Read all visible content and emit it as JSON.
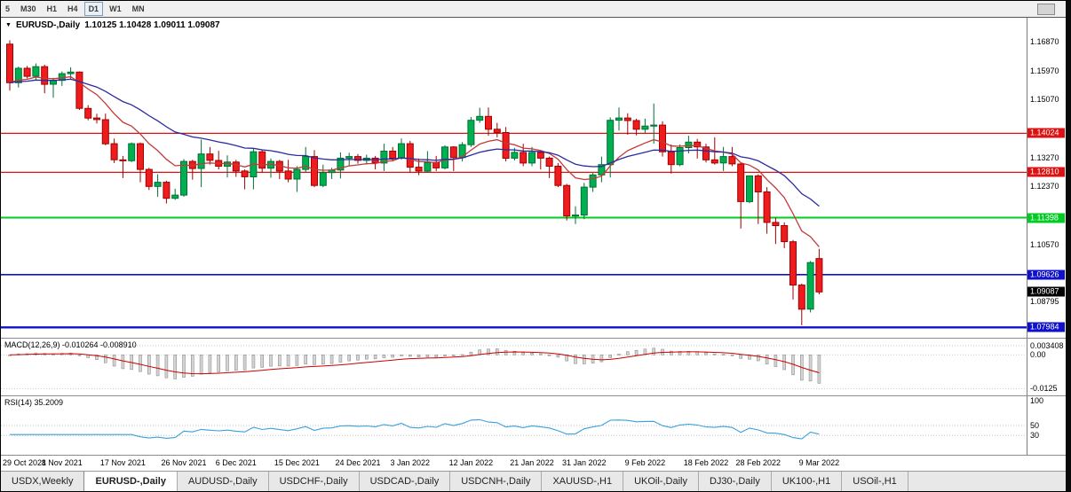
{
  "toolbar": {
    "timeframes": [
      {
        "label": "5",
        "active": false
      },
      {
        "label": "M30",
        "active": false
      },
      {
        "label": "H1",
        "active": false
      },
      {
        "label": "H4",
        "active": false
      },
      {
        "label": "D1",
        "active": true
      },
      {
        "label": "W1",
        "active": false
      },
      {
        "label": "MN",
        "active": false
      }
    ]
  },
  "chart_header": {
    "symbol": "EURUSD-,Daily",
    "ohlc": "1.10125 1.10428 1.09011 1.09087"
  },
  "chart_data": {
    "type": "candlestick",
    "title": "EURUSD-,Daily",
    "colors": {
      "up": "#00b050",
      "up_border": "#007033",
      "down": "#ee1c1c",
      "down_border": "#a00000"
    },
    "price_axis": {
      "view_max": 1.1765,
      "view_min": 1.0766,
      "labels": [
        "1.16870",
        "1.15970",
        "1.15070",
        "1.13270",
        "1.12370",
        "1.10570",
        "1.08795"
      ]
    },
    "h_lines": [
      {
        "label": "1.14024",
        "value": 1.14024,
        "color": "#dd1111",
        "width": 1.2
      },
      {
        "label": "1.12810",
        "value": 1.1281,
        "color": "#dd1111",
        "width": 1.2
      },
      {
        "label": "1.11398",
        "value": 1.11398,
        "color": "#00cc22",
        "width": 2
      },
      {
        "label": "1.09626",
        "value": 1.09626,
        "color": "#1111cc",
        "width": 1.6
      },
      {
        "label": "1.07984",
        "value": 1.07984,
        "color": "#1111cc",
        "width": 2.4
      }
    ],
    "current_price": {
      "label": "1.09087",
      "value": 1.09087,
      "color": "#000000"
    },
    "moving_averages": [
      {
        "period": 10,
        "color": "#c33a3a"
      },
      {
        "period": 25,
        "color": "#2a2aa0"
      }
    ],
    "candles": [
      [
        1.168,
        1.1692,
        1.1535,
        1.156
      ],
      [
        1.156,
        1.161,
        1.1545,
        1.1605
      ],
      [
        1.1605,
        1.1612,
        1.1573,
        1.158
      ],
      [
        1.158,
        1.162,
        1.1568,
        1.161
      ],
      [
        1.161,
        1.1616,
        1.1527,
        1.1555
      ],
      [
        1.1555,
        1.1575,
        1.1513,
        1.1567
      ],
      [
        1.1567,
        1.1595,
        1.155,
        1.1588
      ],
      [
        1.1588,
        1.1608,
        1.157,
        1.1593
      ],
      [
        1.1593,
        1.1595,
        1.1475,
        1.148
      ],
      [
        1.148,
        1.149,
        1.1443,
        1.145
      ],
      [
        1.145,
        1.1463,
        1.1433,
        1.1445
      ],
      [
        1.1445,
        1.1464,
        1.1365,
        1.137
      ],
      [
        1.137,
        1.1386,
        1.131,
        1.132
      ],
      [
        1.132,
        1.1332,
        1.1263,
        1.1317
      ],
      [
        1.1317,
        1.1374,
        1.1313,
        1.137
      ],
      [
        1.137,
        1.1374,
        1.125,
        1.129
      ],
      [
        1.129,
        1.1295,
        1.1226,
        1.1237
      ],
      [
        1.1237,
        1.1275,
        1.1205,
        1.125
      ],
      [
        1.125,
        1.1255,
        1.1184,
        1.12
      ],
      [
        1.12,
        1.123,
        1.1195,
        1.121
      ],
      [
        1.121,
        1.1322,
        1.1205,
        1.1315
      ],
      [
        1.1315,
        1.132,
        1.1258,
        1.1293
      ],
      [
        1.1293,
        1.1383,
        1.1235,
        1.1338
      ],
      [
        1.1338,
        1.136,
        1.1305,
        1.1318
      ],
      [
        1.1318,
        1.1348,
        1.129,
        1.13
      ],
      [
        1.13,
        1.1334,
        1.1265,
        1.1313
      ],
      [
        1.1313,
        1.132,
        1.1267,
        1.1285
      ],
      [
        1.1285,
        1.129,
        1.1228,
        1.1267
      ],
      [
        1.1267,
        1.1355,
        1.1228,
        1.1345
      ],
      [
        1.1345,
        1.135,
        1.128,
        1.1294
      ],
      [
        1.1294,
        1.1324,
        1.1264,
        1.1315
      ],
      [
        1.1315,
        1.132,
        1.126,
        1.1285
      ],
      [
        1.1285,
        1.132,
        1.125,
        1.126
      ],
      [
        1.126,
        1.13,
        1.122,
        1.129
      ],
      [
        1.129,
        1.136,
        1.128,
        1.133
      ],
      [
        1.133,
        1.135,
        1.1235,
        1.124
      ],
      [
        1.124,
        1.1305,
        1.1235,
        1.128
      ],
      [
        1.128,
        1.1295,
        1.126,
        1.1288
      ],
      [
        1.1288,
        1.1343,
        1.1262,
        1.1325
      ],
      [
        1.1325,
        1.1342,
        1.13,
        1.133
      ],
      [
        1.133,
        1.1338,
        1.1308,
        1.1318
      ],
      [
        1.1318,
        1.1336,
        1.1305,
        1.1325
      ],
      [
        1.1325,
        1.1332,
        1.129,
        1.131
      ],
      [
        1.131,
        1.137,
        1.1285,
        1.1347
      ],
      [
        1.1347,
        1.136,
        1.1315,
        1.1325
      ],
      [
        1.1325,
        1.1386,
        1.132,
        1.137
      ],
      [
        1.137,
        1.1379,
        1.128,
        1.1297
      ],
      [
        1.1297,
        1.1324,
        1.1272,
        1.1285
      ],
      [
        1.1285,
        1.1347,
        1.128,
        1.1312
      ],
      [
        1.1312,
        1.1332,
        1.1285,
        1.1295
      ],
      [
        1.1295,
        1.1365,
        1.129,
        1.136
      ],
      [
        1.136,
        1.1362,
        1.1285,
        1.1327
      ],
      [
        1.1327,
        1.1375,
        1.1315,
        1.1367
      ],
      [
        1.1367,
        1.1453,
        1.136,
        1.1443
      ],
      [
        1.1443,
        1.1482,
        1.1435,
        1.1455
      ],
      [
        1.1455,
        1.1483,
        1.1395,
        1.1415
      ],
      [
        1.1415,
        1.1435,
        1.139,
        1.1405
      ],
      [
        1.1405,
        1.1422,
        1.1315,
        1.1325
      ],
      [
        1.1325,
        1.1357,
        1.1318,
        1.1343
      ],
      [
        1.1343,
        1.137,
        1.13,
        1.131
      ],
      [
        1.131,
        1.136,
        1.13,
        1.1343
      ],
      [
        1.1343,
        1.135,
        1.129,
        1.1325
      ],
      [
        1.1325,
        1.133,
        1.1263,
        1.13
      ],
      [
        1.13,
        1.131,
        1.1235,
        1.124
      ],
      [
        1.124,
        1.1245,
        1.1131,
        1.1145
      ],
      [
        1.1145,
        1.1175,
        1.112,
        1.1148
      ],
      [
        1.1148,
        1.1248,
        1.1135,
        1.1235
      ],
      [
        1.1235,
        1.1279,
        1.122,
        1.1273
      ],
      [
        1.1273,
        1.133,
        1.125,
        1.1305
      ],
      [
        1.1305,
        1.1452,
        1.1265,
        1.1443
      ],
      [
        1.1443,
        1.1483,
        1.1411,
        1.145
      ],
      [
        1.145,
        1.1465,
        1.1398,
        1.1442
      ],
      [
        1.1442,
        1.1448,
        1.1396,
        1.1415
      ],
      [
        1.1415,
        1.1448,
        1.1403,
        1.1425
      ],
      [
        1.1425,
        1.1495,
        1.137,
        1.1428
      ],
      [
        1.1428,
        1.144,
        1.133,
        1.1345
      ],
      [
        1.1345,
        1.1368,
        1.1277,
        1.1305
      ],
      [
        1.1305,
        1.1368,
        1.13,
        1.1358
      ],
      [
        1.1358,
        1.1395,
        1.134,
        1.1375
      ],
      [
        1.1375,
        1.1385,
        1.1324,
        1.136
      ],
      [
        1.136,
        1.137,
        1.1312,
        1.132
      ],
      [
        1.132,
        1.139,
        1.1305,
        1.131
      ],
      [
        1.131,
        1.136,
        1.1285,
        1.133
      ],
      [
        1.133,
        1.136,
        1.13,
        1.1307
      ],
      [
        1.1307,
        1.131,
        1.1106,
        1.119
      ],
      [
        1.119,
        1.127,
        1.1185,
        1.127
      ],
      [
        1.127,
        1.1275,
        1.112,
        1.122
      ],
      [
        1.122,
        1.1235,
        1.109,
        1.1125
      ],
      [
        1.1125,
        1.114,
        1.1058,
        1.1115
      ],
      [
        1.1115,
        1.1125,
        1.1045,
        1.1065
      ],
      [
        1.1065,
        1.107,
        1.0885,
        1.093
      ],
      [
        1.093,
        1.0935,
        1.0805,
        1.0855
      ],
      [
        1.0855,
        1.1005,
        1.0845,
        1.1
      ],
      [
        1.10125,
        1.10428,
        1.09011,
        1.09087
      ]
    ],
    "x_labels": [
      {
        "text": "29 Oct 2021",
        "index": 0
      },
      {
        "text": "8 Nov 2021",
        "index": 6
      },
      {
        "text": "17 Nov 2021",
        "index": 13
      },
      {
        "text": "26 Nov 2021",
        "index": 20
      },
      {
        "text": "6 Dec 2021",
        "index": 26
      },
      {
        "text": "15 Dec 2021",
        "index": 33
      },
      {
        "text": "24 Dec 2021",
        "index": 40
      },
      {
        "text": "3 Jan 2022",
        "index": 46
      },
      {
        "text": "12 Jan 2022",
        "index": 53
      },
      {
        "text": "21 Jan 2022",
        "index": 60
      },
      {
        "text": "31 Jan 2022",
        "index": 66
      },
      {
        "text": "9 Feb 2022",
        "index": 73
      },
      {
        "text": "18 Feb 2022",
        "index": 80
      },
      {
        "text": "28 Feb 2022",
        "index": 86
      },
      {
        "text": "9 Mar 2022",
        "index": 93
      }
    ]
  },
  "macd_panel": {
    "label": "MACD(12,26,9) -0.010264 -0.008910",
    "fast": 12,
    "slow": 26,
    "signal": 9,
    "view_max": 0.006,
    "view_min": -0.015,
    "signal_color": "#cc0000",
    "axis_labels": [
      {
        "text": "0.003408",
        "value": 0.003408
      },
      {
        "text": "0.00",
        "value": 0
      },
      {
        "text": "-0.0125",
        "value": -0.0125
      }
    ]
  },
  "rsi_panel": {
    "label": "RSI(14) 35.2009",
    "period": 14,
    "line_color": "#3aa0dc",
    "levels": [
      50,
      30
    ],
    "axis_labels": [
      {
        "text": "100",
        "value": 100
      },
      {
        "text": "50",
        "value": 50
      },
      {
        "text": "30",
        "value": 30
      }
    ]
  },
  "tabs": [
    {
      "label": "USDX,Weekly",
      "active": false
    },
    {
      "label": "EURUSD-,Daily",
      "active": true
    },
    {
      "label": "AUDUSD-,Daily",
      "active": false
    },
    {
      "label": "USDCHF-,Daily",
      "active": false
    },
    {
      "label": "USDCAD-,Daily",
      "active": false
    },
    {
      "label": "USDCNH-,Daily",
      "active": false
    },
    {
      "label": "XAUUSD-,H1",
      "active": false
    },
    {
      "label": "UKOil-,Daily",
      "active": false
    },
    {
      "label": "DJ30-,Daily",
      "active": false
    },
    {
      "label": "UK100-,H1",
      "active": false
    },
    {
      "label": "USOil-,H1",
      "active": false
    }
  ]
}
